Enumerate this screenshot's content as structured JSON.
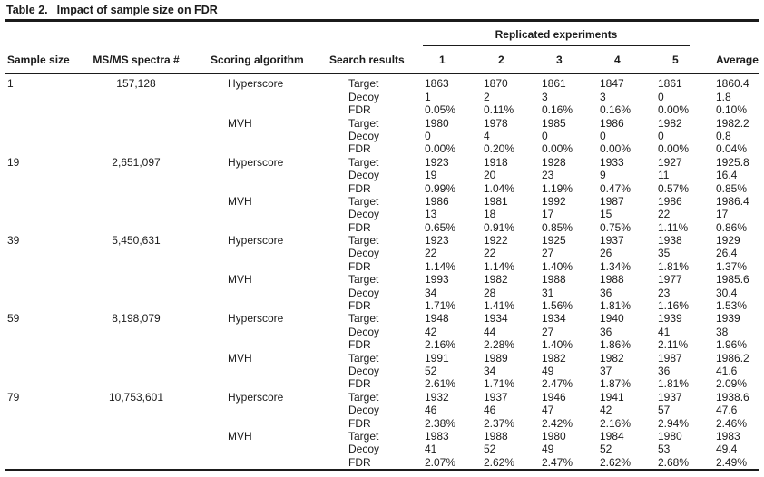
{
  "title": {
    "label": "Table 2.",
    "text": "Impact of sample size on FDR"
  },
  "table": {
    "group_header": "Replicated experiments",
    "columns": [
      "Sample size",
      "MS/MS spectra #",
      "Scoring algorithm",
      "Search results",
      "1",
      "2",
      "3",
      "4",
      "5",
      "Average"
    ],
    "blocks": [
      {
        "sample_size": "1",
        "spectra": "157,128",
        "algorithms": [
          {
            "name": "Hyperscore",
            "rows": [
              {
                "label": "Target",
                "values": [
                  "1863",
                  "1870",
                  "1861",
                  "1847",
                  "1861",
                  "1860.4"
                ]
              },
              {
                "label": "Decoy",
                "values": [
                  "1",
                  "2",
                  "3",
                  "3",
                  "0",
                  "1.8"
                ]
              },
              {
                "label": "FDR",
                "values": [
                  "0.05%",
                  "0.11%",
                  "0.16%",
                  "0.16%",
                  "0.00%",
                  "0.10%"
                ]
              }
            ]
          },
          {
            "name": "MVH",
            "rows": [
              {
                "label": "Target",
                "values": [
                  "1980",
                  "1978",
                  "1985",
                  "1986",
                  "1982",
                  "1982.2"
                ]
              },
              {
                "label": "Decoy",
                "values": [
                  "0",
                  "4",
                  "0",
                  "0",
                  "0",
                  "0.8"
                ]
              },
              {
                "label": "FDR",
                "values": [
                  "0.00%",
                  "0.20%",
                  "0.00%",
                  "0.00%",
                  "0.00%",
                  "0.04%"
                ]
              }
            ]
          }
        ]
      },
      {
        "sample_size": "19",
        "spectra": "2,651,097",
        "algorithms": [
          {
            "name": "Hyperscore",
            "rows": [
              {
                "label": "Target",
                "values": [
                  "1923",
                  "1918",
                  "1928",
                  "1933",
                  "1927",
                  "1925.8"
                ]
              },
              {
                "label": "Decoy",
                "values": [
                  "19",
                  "20",
                  "23",
                  "9",
                  "11",
                  "16.4"
                ]
              },
              {
                "label": "FDR",
                "values": [
                  "0.99%",
                  "1.04%",
                  "1.19%",
                  "0.47%",
                  "0.57%",
                  "0.85%"
                ]
              }
            ]
          },
          {
            "name": "MVH",
            "rows": [
              {
                "label": "Target",
                "values": [
                  "1986",
                  "1981",
                  "1992",
                  "1987",
                  "1986",
                  "1986.4"
                ]
              },
              {
                "label": "Decoy",
                "values": [
                  "13",
                  "18",
                  "17",
                  "15",
                  "22",
                  "17"
                ]
              },
              {
                "label": "FDR",
                "values": [
                  "0.65%",
                  "0.91%",
                  "0.85%",
                  "0.75%",
                  "1.11%",
                  "0.86%"
                ]
              }
            ]
          }
        ]
      },
      {
        "sample_size": "39",
        "spectra": "5,450,631",
        "algorithms": [
          {
            "name": "Hyperscore",
            "rows": [
              {
                "label": "Target",
                "values": [
                  "1923",
                  "1922",
                  "1925",
                  "1937",
                  "1938",
                  "1929"
                ]
              },
              {
                "label": "Decoy",
                "values": [
                  "22",
                  "22",
                  "27",
                  "26",
                  "35",
                  "26.4"
                ]
              },
              {
                "label": "FDR",
                "values": [
                  "1.14%",
                  "1.14%",
                  "1.40%",
                  "1.34%",
                  "1.81%",
                  "1.37%"
                ]
              }
            ]
          },
          {
            "name": "MVH",
            "rows": [
              {
                "label": "Target",
                "values": [
                  "1993",
                  "1982",
                  "1988",
                  "1988",
                  "1977",
                  "1985.6"
                ]
              },
              {
                "label": "Decoy",
                "values": [
                  "34",
                  "28",
                  "31",
                  "36",
                  "23",
                  "30.4"
                ]
              },
              {
                "label": "FDR",
                "values": [
                  "1.71%",
                  "1.41%",
                  "1.56%",
                  "1.81%",
                  "1.16%",
                  "1.53%"
                ]
              }
            ]
          }
        ]
      },
      {
        "sample_size": "59",
        "spectra": "8,198,079",
        "algorithms": [
          {
            "name": "Hyperscore",
            "rows": [
              {
                "label": "Target",
                "values": [
                  "1948",
                  "1934",
                  "1934",
                  "1940",
                  "1939",
                  "1939"
                ]
              },
              {
                "label": "Decoy",
                "values": [
                  "42",
                  "44",
                  "27",
                  "36",
                  "41",
                  "38"
                ]
              },
              {
                "label": "FDR",
                "values": [
                  "2.16%",
                  "2.28%",
                  "1.40%",
                  "1.86%",
                  "2.11%",
                  "1.96%"
                ]
              }
            ]
          },
          {
            "name": "MVH",
            "rows": [
              {
                "label": "Target",
                "values": [
                  "1991",
                  "1989",
                  "1982",
                  "1982",
                  "1987",
                  "1986.2"
                ]
              },
              {
                "label": "Decoy",
                "values": [
                  "52",
                  "34",
                  "49",
                  "37",
                  "36",
                  "41.6"
                ]
              },
              {
                "label": "FDR",
                "values": [
                  "2.61%",
                  "1.71%",
                  "2.47%",
                  "1.87%",
                  "1.81%",
                  "2.09%"
                ]
              }
            ]
          }
        ]
      },
      {
        "sample_size": "79",
        "spectra": "10,753,601",
        "algorithms": [
          {
            "name": "Hyperscore",
            "rows": [
              {
                "label": "Target",
                "values": [
                  "1932",
                  "1937",
                  "1946",
                  "1941",
                  "1937",
                  "1938.6"
                ]
              },
              {
                "label": "Decoy",
                "values": [
                  "46",
                  "46",
                  "47",
                  "42",
                  "57",
                  "47.6"
                ]
              },
              {
                "label": "FDR",
                "values": [
                  "2.38%",
                  "2.37%",
                  "2.42%",
                  "2.16%",
                  "2.94%",
                  "2.46%"
                ]
              }
            ]
          },
          {
            "name": "MVH",
            "rows": [
              {
                "label": "Target",
                "values": [
                  "1983",
                  "1988",
                  "1980",
                  "1984",
                  "1980",
                  "1983"
                ]
              },
              {
                "label": "Decoy",
                "values": [
                  "41",
                  "52",
                  "49",
                  "52",
                  "53",
                  "49.4"
                ]
              },
              {
                "label": "FDR",
                "values": [
                  "2.07%",
                  "2.62%",
                  "2.47%",
                  "2.62%",
                  "2.68%",
                  "2.49%"
                ]
              }
            ]
          }
        ]
      }
    ]
  }
}
